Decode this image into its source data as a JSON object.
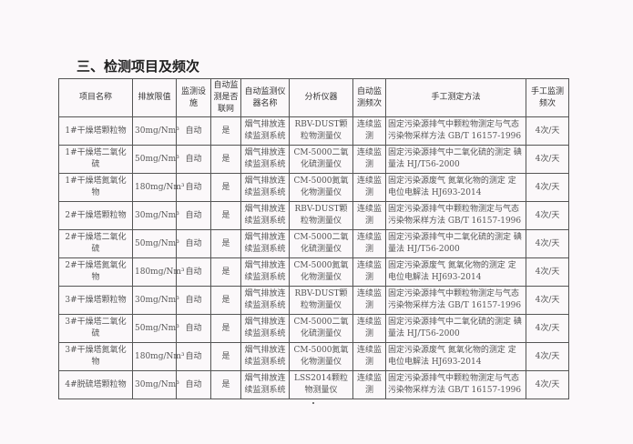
{
  "section_title": "三、检测项目及频次",
  "headers": [
    "项目名称",
    "排放限值",
    "监测设施",
    "自动监测是否联网",
    "自动监测仪器名称",
    "分析仪器",
    "自动监测频次",
    "手工测定方法",
    "手工监测频次"
  ],
  "rows": [
    [
      "1#干燥塔颗粒物",
      "30mg/Nm³",
      "自动",
      "是",
      "烟气排放连续监测系统",
      "RBV-DUST颗粒物测量仪",
      "连续监测",
      "固定污染源排气中颗粒物测定与气态污染物采样方法 GB/T 16157-1996",
      "4次/天"
    ],
    [
      "1#干燥塔二氧化硫",
      "50mg/Nm³",
      "自动",
      "是",
      "烟气排放连续监测系统",
      "CM-5000二氧化硫测量仪",
      "连续监测",
      "固定污染源排气中二氧化硫的测定 碘量法 HJ/T56-2000",
      "4次/天"
    ],
    [
      "1#干燥塔氮氧化物",
      "180mg/Nm³",
      "自动",
      "是",
      "烟气排放连续监测系统",
      "CM-5000氮氧化物测量仪",
      "连续监测",
      "固定污染源废气 氮氧化物的测定 定电位电解法 HJ693-2014",
      "4次/天"
    ],
    [
      "2#干燥塔颗粒物",
      "30mg/Nm³",
      "自动",
      "是",
      "烟气排放连续监测系统",
      "RBV-DUST颗粒物测量仪",
      "连续监测",
      "固定污染源排气中颗粒物测定与气态污染物采样方法 GB/T 16157-1996",
      "4次/天"
    ],
    [
      "2#干燥塔二氧化硫",
      "50mg/Nm³",
      "自动",
      "是",
      "烟气排放连续监测系统",
      "CM-5000二氧化硫测量仪",
      "连续监测",
      "固定污染源排气中二氧化硫的测定 碘量法 HJ/T56-2000",
      "4次/天"
    ],
    [
      "2#干燥塔氮氧化物",
      "180mg/Nm³",
      "自动",
      "是",
      "烟气排放连续监测系统",
      "CM-5000氮氧化物测量仪",
      "连续监测",
      "固定污染源废气 氮氧化物的测定 定电位电解法 HJ693-2014",
      "4次/天"
    ],
    [
      "3#干燥塔颗粒物",
      "30mg/Nm³",
      "自动",
      "是",
      "烟气排放连续监测系统",
      "RBV-DUST颗粒物测量仪",
      "连续监测",
      "固定污染源排气中颗粒物测定与气态污染物采样方法 GB/T 16157-1996",
      "4次/天"
    ],
    [
      "3#干燥塔二氧化硫",
      "50mg/Nm³",
      "自动",
      "是",
      "烟气排放连续监测系统",
      "CM-5000二氧化硫测量仪",
      "连续监测",
      "固定污染源排气中二氧化硫的测定 碘量法 HJ/T56-2000",
      "4次/天"
    ],
    [
      "3#干燥塔氮氧化物",
      "180mg/Nm³",
      "自动",
      "是",
      "烟气排放连续监测系统",
      "CM-5000氮氧化物测量仪",
      "连续监测",
      "固定污染源废气 氮氧化物的测定 定电位电解法 HJ693-2014",
      "4次/天"
    ],
    [
      "4#脱硫塔颗粒物",
      "30mg/Nm³",
      "自动",
      "是",
      "烟气排放连续监测系统",
      "LSS2014颗粒物测量仪",
      "连续监测",
      "固定污染源排气中颗粒物测定与气态污染物采样方法 GB/T 16157-1996",
      "4次/天"
    ]
  ]
}
